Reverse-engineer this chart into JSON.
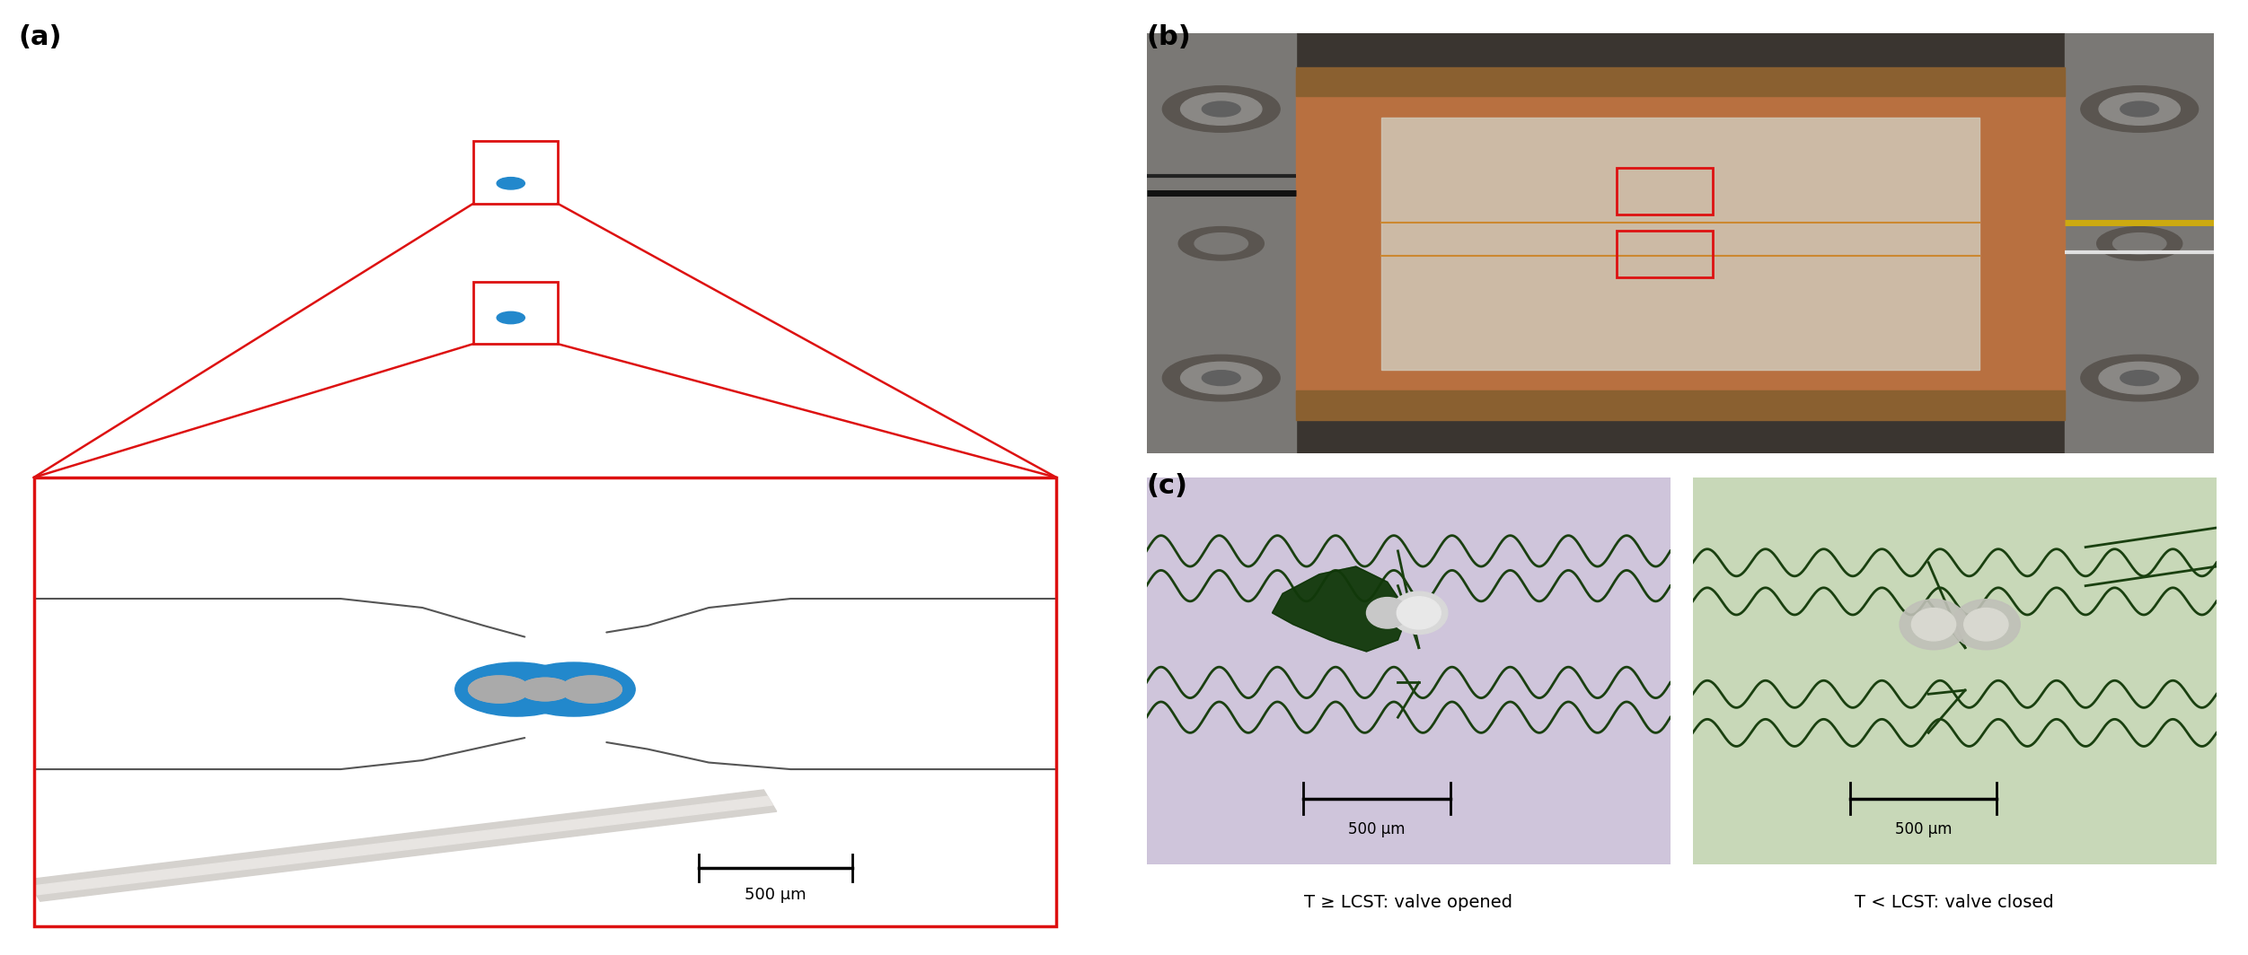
{
  "figure_width": 25.03,
  "figure_height": 10.64,
  "background_color": "#ffffff",
  "panel_a_label": "(a)",
  "panel_b_label": "(b)",
  "panel_c_label": "(c)",
  "label_fontsize": 22,
  "label_fontweight": "bold",
  "scale_bar_text_a": "500 μm",
  "scale_bar_text_c1": "500 μm",
  "scale_bar_text_c2": "500 μm",
  "caption_left": "T ≥ LCST: valve opened",
  "caption_right": "T < LCST: valve closed",
  "caption_fontsize": 14,
  "top_panel_bg": "#c8c3bc",
  "zoom_panel_bg": "#c8c3bc",
  "red_color": "#dd1111",
  "channel_white": "#ffffff",
  "hydrogel_blue": "#2288cc",
  "post_gray": "#aaaaaa",
  "post_dark": "#888888"
}
